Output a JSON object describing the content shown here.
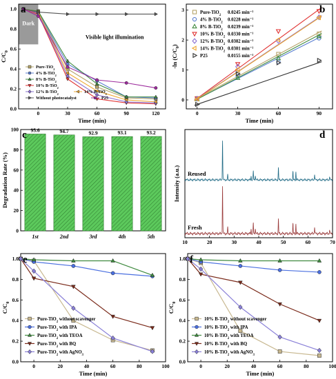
{
  "chart_data": [
    {
      "panel_letter": "a",
      "type": "line",
      "xlabel": "Time (min)",
      "ylabel": "C/C0",
      "xlim": [
        -20,
        130
      ],
      "ylim": [
        0,
        1.05
      ],
      "xticks": [
        0,
        30,
        60,
        90,
        120
      ],
      "yticks": [
        0.0,
        0.2,
        0.4,
        0.6,
        0.8,
        1.0
      ],
      "x": [
        -15,
        0,
        30,
        60,
        90,
        120
      ],
      "annotations": {
        "dark": "Dark",
        "light": "Visible light illumination"
      },
      "legend_position": "bottom-left",
      "series": [
        {
          "name": "Pure-TiO2",
          "color": "#b5a46a",
          "marker": "square",
          "values": [
            1.0,
            0.98,
            0.4,
            0.22,
            0.11,
            0.1
          ]
        },
        {
          "name": "4% B-TiO2",
          "color": "#5b7fd1",
          "marker": "circle",
          "values": [
            1.0,
            0.97,
            0.45,
            0.28,
            0.12,
            0.11
          ]
        },
        {
          "name": "8% B-TiO2",
          "color": "#3f8a3f",
          "marker": "triangle-up",
          "values": [
            1.0,
            0.98,
            0.48,
            0.25,
            0.12,
            0.12
          ]
        },
        {
          "name": "10% B-TiO2",
          "color": "#e03030",
          "marker": "triangle-down",
          "values": [
            1.0,
            0.95,
            0.3,
            0.1,
            0.06,
            0.05
          ]
        },
        {
          "name": "12% B-TiO2",
          "color": "#8a6fd0",
          "marker": "diamond",
          "values": [
            1.0,
            0.96,
            0.33,
            0.14,
            0.07,
            0.06
          ]
        },
        {
          "name": "14% B-TiO2",
          "color": "#f0a830",
          "marker": "triangle-left",
          "values": [
            1.0,
            0.97,
            0.36,
            0.18,
            0.09,
            0.07
          ]
        },
        {
          "name": "Without photocatalyst",
          "color": "#555555",
          "marker": "triangle-right",
          "values": [
            1.0,
            0.97,
            0.95,
            0.95,
            0.95,
            0.95
          ]
        },
        {
          "name": "P25",
          "color": "#9c2a9c",
          "marker": "circle",
          "values": [
            1.0,
            0.93,
            0.42,
            0.29,
            0.26,
            0.21
          ]
        }
      ]
    },
    {
      "panel_letter": "b",
      "type": "scatter",
      "xlabel": "Time (min)",
      "ylabel": "-ln (C/C0)",
      "xlim": [
        -8,
        100
      ],
      "ylim": [
        -0.3,
        3.2
      ],
      "xticks": [
        0,
        30,
        60,
        90
      ],
      "yticks": [
        0,
        1,
        2,
        3
      ],
      "x": [
        0,
        30,
        60,
        90
      ],
      "legend_position": "top-left",
      "series": [
        {
          "name": "Pure-TiO2",
          "rate": "0.0245 min⁻¹",
          "k": 0.0245,
          "color": "#b5a46a",
          "marker": "square",
          "values": [
            0.05,
            0.92,
            1.53,
            2.21
          ]
        },
        {
          "name": "4% B-TiO2",
          "rate": "0.0228 min⁻¹",
          "k": 0.0228,
          "color": "#5b7fd1",
          "marker": "circle",
          "values": [
            0.03,
            0.8,
            1.27,
            2.06
          ]
        },
        {
          "name": "8% B-TiO2",
          "rate": "0.0239 min⁻¹",
          "k": 0.0239,
          "color": "#3f8a3f",
          "marker": "triangle-up",
          "values": [
            0.02,
            0.73,
            1.39,
            2.12
          ]
        },
        {
          "name": "10% B-TiO2",
          "rate": "0.0330 min⁻¹",
          "k": 0.033,
          "color": "#e03030",
          "marker": "triangle-down",
          "values": [
            0.05,
            1.2,
            2.3,
            2.97
          ]
        },
        {
          "name": "12% B-TiO2",
          "rate": "0.0302 min⁻¹",
          "k": 0.0302,
          "color": "#8a6fd0",
          "marker": "diamond",
          "values": [
            0.04,
            1.11,
            1.97,
            2.76
          ]
        },
        {
          "name": "14% B-TiO2",
          "rate": "0.0301 min⁻¹",
          "k": 0.0301,
          "color": "#f0a830",
          "marker": "triangle-left",
          "values": [
            0.03,
            1.02,
            2.01,
            2.75
          ]
        },
        {
          "name": "P25",
          "rate": "0.0155 min⁻¹",
          "k": 0.0155,
          "color": "#333333",
          "marker": "triangle-right",
          "values": [
            -0.15,
            0.87,
            1.24,
            1.32
          ]
        }
      ]
    },
    {
      "panel_letter": "c",
      "type": "bar",
      "xlabel": "",
      "ylabel": "Degradation Rate (%)",
      "ylim": [
        0,
        100
      ],
      "yticks": [
        0,
        20,
        40,
        60,
        80,
        100
      ],
      "categories": [
        "1st",
        "2nd",
        "3rd",
        "4th",
        "5th"
      ],
      "values": [
        95.6,
        94.7,
        92.9,
        93.1,
        93.2
      ],
      "value_labels": [
        "95.6",
        "94.7",
        "92.9",
        "93.1",
        "93.2"
      ],
      "color": "#5cc95c"
    },
    {
      "panel_letter": "d",
      "type": "line",
      "xlabel": "",
      "ylabel": "Intensity (a.u.)",
      "xlim": [
        10,
        70
      ],
      "xticks": [
        10,
        20,
        30,
        40,
        50,
        60,
        70
      ],
      "peaks_2theta": [
        25.3,
        27.4,
        36.9,
        37.8,
        38.6,
        48.0,
        53.9,
        55.1,
        62.7,
        68.8
      ],
      "peak_heights": [
        1.0,
        0.12,
        0.1,
        0.22,
        0.12,
        0.3,
        0.2,
        0.2,
        0.15,
        0.08
      ],
      "series": [
        {
          "name": "Reused",
          "color": "#1f6a85"
        },
        {
          "name": "Fresh",
          "color": "#9a3a3a"
        }
      ]
    },
    {
      "panel_letter": "e",
      "type": "line",
      "xlabel": "Time (min)",
      "ylabel": "C/C0",
      "xlim": [
        -10,
        100
      ],
      "ylim": [
        0,
        1.05
      ],
      "xticks": [
        0,
        20,
        40,
        60,
        80,
        100
      ],
      "yticks": [
        0.0,
        0.2,
        0.4,
        0.6,
        0.8,
        1.0
      ],
      "x": [
        -10,
        0,
        30,
        60,
        90
      ],
      "legend_position": "bottom-left",
      "series": [
        {
          "name": "Pure-TiO2 without scavenger",
          "color": "#c8b890",
          "marker": "square",
          "values": [
            1.0,
            0.98,
            0.4,
            0.21,
            0.11
          ]
        },
        {
          "name": "Pure-TiO2 with IPA",
          "color": "#4a6fe0",
          "marker": "circle",
          "values": [
            1.0,
            0.97,
            0.93,
            0.86,
            0.83
          ]
        },
        {
          "name": "Pure-TiO2 with TEOA",
          "color": "#3f8a3f",
          "marker": "triangle-up",
          "values": [
            1.0,
            0.99,
            0.98,
            0.98,
            0.84
          ]
        },
        {
          "name": "Pure-TiO2 with BQ",
          "color": "#7a2a1a",
          "marker": "triangle-down",
          "values": [
            1.0,
            0.81,
            0.73,
            0.44,
            0.33
          ]
        },
        {
          "name": "Pure-TiO2 with AgNO3",
          "color": "#8a80d8",
          "marker": "diamond",
          "values": [
            1.0,
            0.88,
            0.52,
            0.23,
            0.1
          ]
        }
      ]
    },
    {
      "panel_letter": "f",
      "type": "line",
      "xlabel": "Time (min)",
      "ylabel": "C/C0",
      "xlim": [
        -10,
        100
      ],
      "ylim": [
        0,
        1.05
      ],
      "xticks": [
        0,
        20,
        40,
        60,
        80,
        100
      ],
      "yticks": [
        0.0,
        0.2,
        0.4,
        0.6,
        0.8,
        1.0
      ],
      "x": [
        -10,
        0,
        30,
        60,
        90
      ],
      "legend_position": "bottom-left",
      "series": [
        {
          "name": "10% B-TiO2 without scavenger",
          "color": "#c8b890",
          "marker": "square",
          "values": [
            1.0,
            0.96,
            0.3,
            0.1,
            0.06
          ]
        },
        {
          "name": "10% B-TiO2 with IPA",
          "color": "#4a6fe0",
          "marker": "circle",
          "values": [
            1.0,
            0.97,
            0.93,
            0.89,
            0.87
          ]
        },
        {
          "name": "10% B-TiO2 with TEOA",
          "color": "#3f8a3f",
          "marker": "triangle-up",
          "values": [
            1.0,
            0.99,
            0.98,
            0.98,
            0.98
          ]
        },
        {
          "name": "10% B-TiO2 with BQ",
          "color": "#7a2a1a",
          "marker": "triangle-down",
          "values": [
            1.0,
            0.85,
            0.77,
            0.56,
            0.4
          ]
        },
        {
          "name": "10% B-TiO2 with AgNO3",
          "color": "#8a80d8",
          "marker": "diamond",
          "values": [
            1.0,
            0.9,
            0.53,
            0.24,
            0.11
          ]
        }
      ]
    }
  ]
}
